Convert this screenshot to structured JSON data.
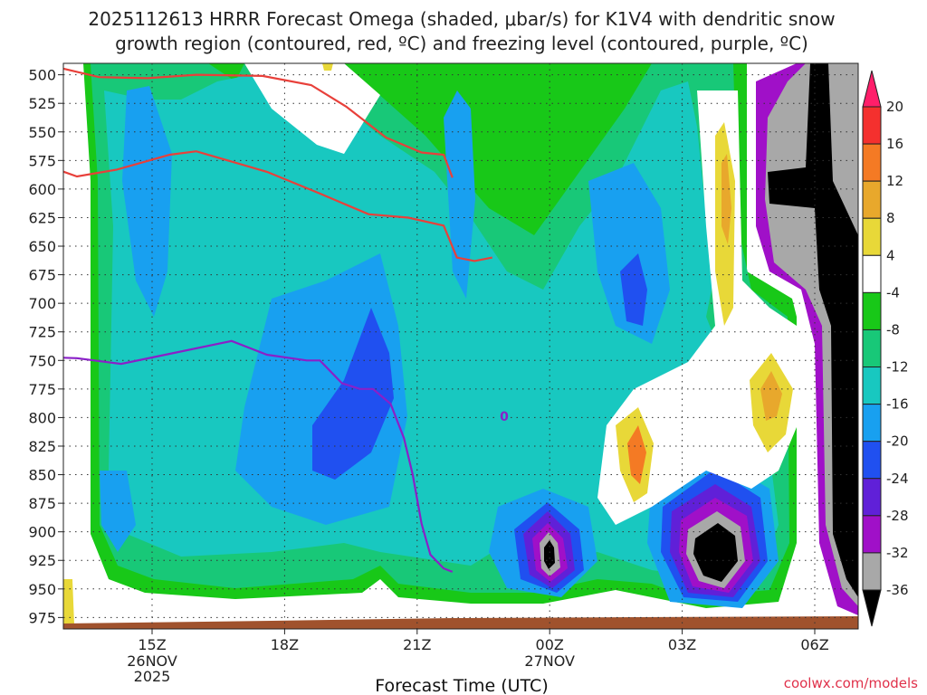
{
  "chart_data": {
    "type": "heatmap",
    "title_lines": [
      "2025112613 HRRR Forecast Omega (shaded, μbar/s) for K1V4 with dendritic snow",
      "growth region (contoured, red, ºC) and freezing level (contoured, purple, ºC)"
    ],
    "xlabel": "Forecast Time (UTC)",
    "credit": "coolwx.com/models",
    "y_axis": {
      "scale": "pressure",
      "ticks": [
        500,
        525,
        550,
        575,
        600,
        625,
        650,
        675,
        700,
        725,
        750,
        775,
        800,
        825,
        850,
        875,
        900,
        925,
        950,
        975
      ],
      "ylim": [
        490,
        985
      ]
    },
    "x_axis": {
      "ticks": [
        {
          "label": "15Z",
          "sub": [
            "26NOV",
            "2025"
          ]
        },
        {
          "label": "18Z",
          "sub": []
        },
        {
          "label": "21Z",
          "sub": []
        },
        {
          "label": "00Z",
          "sub": [
            "27NOV"
          ]
        },
        {
          "label": "03Z",
          "sub": []
        },
        {
          "label": "06Z",
          "sub": []
        }
      ]
    },
    "colorbar": {
      "levels": [
        20,
        16,
        12,
        8,
        4,
        -4,
        -8,
        -12,
        -16,
        -20,
        -24,
        -28,
        -32,
        -36
      ],
      "colors": [
        "#ff1e6a",
        "#f4302e",
        "#f47a24",
        "#e8a82c",
        "#e8d838",
        "#ffffff",
        "#18c818",
        "#18c878",
        "#18c8c0",
        "#18a0f0",
        "#2050f0",
        "#6020d8",
        "#a010c8",
        "#a8a8a8",
        "#000000"
      ]
    },
    "freezing_level_label": "0",
    "freezing_level_line": [
      [
        -3.2,
        740
      ],
      [
        -2.5,
        747
      ],
      [
        -1.7,
        748
      ],
      [
        -0.7,
        753
      ],
      [
        0.3,
        745
      ],
      [
        1.8,
        733
      ],
      [
        2.6,
        745
      ],
      [
        3.5,
        750
      ],
      [
        3.8,
        750
      ],
      [
        4.3,
        770
      ],
      [
        4.7,
        775
      ],
      [
        5.0,
        775
      ],
      [
        5.4,
        788
      ],
      [
        5.7,
        818
      ],
      [
        5.9,
        850
      ],
      [
        6.1,
        893
      ],
      [
        6.3,
        920
      ],
      [
        6.6,
        932
      ],
      [
        6.8,
        935
      ]
    ],
    "dgz_upper_line": [
      [
        -3.2,
        485
      ],
      [
        -2.3,
        492
      ],
      [
        -1.2,
        502
      ],
      [
        -0.1,
        503
      ],
      [
        1.0,
        500
      ],
      [
        2.5,
        501
      ],
      [
        3.6,
        509
      ],
      [
        4.4,
        528
      ],
      [
        5.3,
        555
      ],
      [
        6.1,
        568
      ],
      [
        6.6,
        570
      ],
      [
        6.8,
        590
      ]
    ],
    "dgz_lower_line": [
      [
        -3.2,
        565
      ],
      [
        -2.5,
        578
      ],
      [
        -1.7,
        589
      ],
      [
        -0.8,
        583
      ],
      [
        0.4,
        570
      ],
      [
        1.0,
        567
      ],
      [
        2.6,
        585
      ],
      [
        3.8,
        604
      ],
      [
        4.9,
        622
      ],
      [
        5.8,
        625
      ],
      [
        6.6,
        632
      ],
      [
        6.9,
        660
      ],
      [
        7.3,
        663
      ],
      [
        7.7,
        660
      ]
    ]
  }
}
